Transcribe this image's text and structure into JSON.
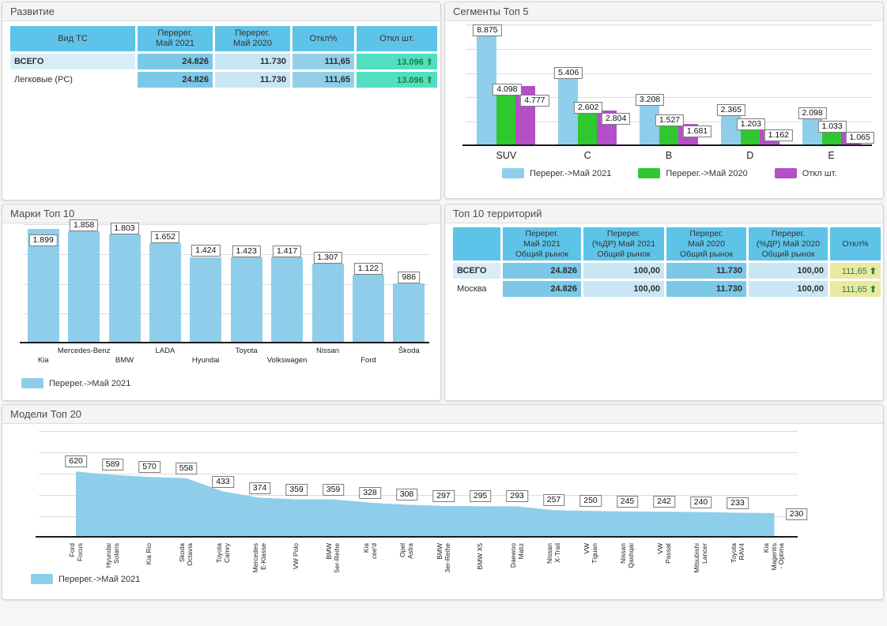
{
  "colors": {
    "series_blue": "#8fceea",
    "series_green": "#2fc82f",
    "series_purple": "#b44fc8",
    "table_header_blue": "#5ec3e8",
    "cell_medium_blue": "#7cc8e8",
    "cell_light_blue": "#c9e6f5",
    "cell_teal": "#52dfc1",
    "cell_khaki": "#ece8a0",
    "row_highlight_blue": "#d9edf8",
    "positive_green": "#1e7d33"
  },
  "icons": {
    "up_arrow": "⬆"
  },
  "panels": {
    "razvitie": {
      "title": "Развитие",
      "table": {
        "headers": [
          "Вид ТС",
          "Перерег.\nМай 2021",
          "Перерег.\nМай 2020",
          "Откл%",
          "Откл шт."
        ],
        "rows": [
          {
            "label": "ВСЕГО",
            "bold": true,
            "may2021": "24.826",
            "may2020": "11.730",
            "otkl_pct": "111,65",
            "otkl_pcs": "13.096",
            "trend": "up"
          },
          {
            "label": "Легковые (PC)",
            "bold": false,
            "may2021": "24.826",
            "may2020": "11.730",
            "otkl_pct": "111,65",
            "otkl_pcs": "13.096",
            "trend": "up"
          }
        ]
      }
    },
    "segments": {
      "title": "Сегменты Топ 5",
      "chart_data": {
        "type": "bar",
        "categories": [
          "SUV",
          "C",
          "B",
          "D",
          "E"
        ],
        "series": [
          {
            "name": "Перерег.->Май 2021",
            "color_key": "blue",
            "values": [
              8875,
              5406,
              3208,
              2365,
              2098
            ],
            "labels": [
              "8.875",
              "5.406",
              "3.208",
              "2.365",
              "2.098"
            ]
          },
          {
            "name": "Перерег.->Май 2020",
            "color_key": "green",
            "values": [
              4098,
              2602,
              1527,
              1203,
              1033
            ],
            "labels": [
              "4.098",
              "2.602",
              "1.527",
              "1.203",
              "1.033"
            ]
          },
          {
            "name": "Откл шт.",
            "color_key": "purple",
            "values": [
              4777,
              2804,
              1681,
              1162,
              1065
            ],
            "labels": [
              "4.777",
              "2.804",
              "1.681",
              "1.162",
              "1.065"
            ]
          }
        ],
        "ylim": [
          0,
          10000
        ],
        "grid_step": 2000,
        "legend_position": "bottom"
      }
    },
    "marki": {
      "title": "Марки Топ 10",
      "chart_data": {
        "type": "bar",
        "categories": [
          "Kia",
          "Mercedes-Benz",
          "BMW",
          "LADA",
          "Hyundai",
          "Toyota",
          "Volkswagen",
          "Nissan",
          "Ford",
          "Škoda"
        ],
        "values": [
          1899,
          1858,
          1803,
          1652,
          1424,
          1423,
          1417,
          1307,
          1122,
          986
        ],
        "labels": [
          "1.899",
          "1.858",
          "1.803",
          "1.652",
          "1.424",
          "1.423",
          "1.417",
          "1.307",
          "1.122",
          "986"
        ],
        "series_name": "Перерег.->Май 2021",
        "ylim": [
          0,
          2000
        ],
        "grid_step": 500,
        "legend_position": "bottom"
      }
    },
    "territories": {
      "title": "Топ 10 территорий",
      "table": {
        "headers": [
          "",
          "Перерег.\nМай 2021\nОбщий рынок",
          "Перерег.\n(%ДР) Май 2021\nОбщий рынок",
          "Перерег.\nМай 2020\nОбщий рынок",
          "Перерег.\n(%ДР) Май 2020\nОбщий рынок",
          "Откл%"
        ],
        "rows": [
          {
            "label": "ВСЕГО",
            "bold": true,
            "cells": [
              "24.826",
              "100,00",
              "11.730",
              "100,00"
            ],
            "otkl_pct": "111,65",
            "trend": "up"
          },
          {
            "label": "Москва",
            "bold": false,
            "cells": [
              "24.826",
              "100,00",
              "11.730",
              "100,00"
            ],
            "otkl_pct": "111,65",
            "trend": "up"
          }
        ]
      }
    },
    "models": {
      "title": "Модели Топ 20",
      "chart_data": {
        "type": "area",
        "series_name": "Перерег.->Май 2021",
        "items": [
          {
            "lines": [
              "Ford",
              "Focus"
            ],
            "value": 620,
            "label": "620"
          },
          {
            "lines": [
              "Hyundai",
              "Solaris"
            ],
            "value": 589,
            "label": "589"
          },
          {
            "lines": [
              "Kia Rio"
            ],
            "value": 570,
            "label": "570"
          },
          {
            "lines": [
              "Skoda",
              "Octavia"
            ],
            "value": 558,
            "label": "558"
          },
          {
            "lines": [
              "Toyota",
              "Camry"
            ],
            "value": 433,
            "label": "433"
          },
          {
            "lines": [
              "Mercedes",
              "E-Klasse"
            ],
            "value": 374,
            "label": "374"
          },
          {
            "lines": [
              "VW Polo"
            ],
            "value": 359,
            "label": "359"
          },
          {
            "lines": [
              "BMW",
              "5er-Reihe"
            ],
            "value": 359,
            "label": "359"
          },
          {
            "lines": [
              "Kia",
              "cee'd"
            ],
            "value": 328,
            "label": "328"
          },
          {
            "lines": [
              "Opel",
              "Astra"
            ],
            "value": 308,
            "label": "308"
          },
          {
            "lines": [
              "BMW",
              "3er-Reihe"
            ],
            "value": 297,
            "label": "297"
          },
          {
            "lines": [
              "BMW X5"
            ],
            "value": 295,
            "label": "295"
          },
          {
            "lines": [
              "Daewoo",
              "Matiz"
            ],
            "value": 293,
            "label": "293"
          },
          {
            "lines": [
              "Nissan",
              "X-Trail"
            ],
            "value": 257,
            "label": "257"
          },
          {
            "lines": [
              "VW",
              "Tiguan"
            ],
            "value": 250,
            "label": "250"
          },
          {
            "lines": [
              "Nissan",
              "Qashqai"
            ],
            "value": 245,
            "label": "245"
          },
          {
            "lines": [
              "VW",
              "Passat"
            ],
            "value": 242,
            "label": "242"
          },
          {
            "lines": [
              "Mitsubishi",
              "Lancer"
            ],
            "value": 240,
            "label": "240"
          },
          {
            "lines": [
              "Toyota",
              "RAV4"
            ],
            "value": 233,
            "label": "233"
          },
          {
            "lines": [
              "Kia",
              "Magentis",
              "- Optima"
            ],
            "value": 230,
            "label": "230"
          }
        ],
        "ylim": [
          0,
          1000
        ],
        "grid_step": 200,
        "legend_position": "bottom"
      }
    }
  }
}
